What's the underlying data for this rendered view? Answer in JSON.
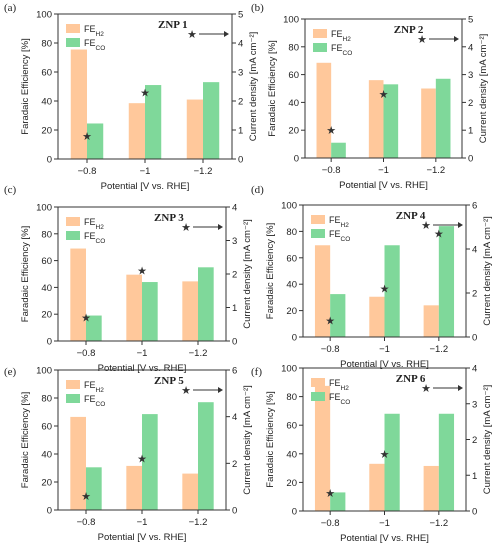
{
  "figure": {
    "xlabel_common": "Potential [V vs. RHE]",
    "colors": {
      "fe_h2": "#ffc89b",
      "fe_co": "#7fd89a",
      "frame": "#333333",
      "star": "#333333"
    },
    "legend_icon": "star-arrow-icon"
  },
  "chart_data": [
    {
      "type": "bar",
      "panel": "(a)",
      "title": "ZNP 1",
      "categories": [
        "-0.8",
        "-1",
        "-1.2"
      ],
      "series": [
        {
          "name": "FE",
          "subscript": "H2",
          "values": [
            75.5,
            38.5,
            41
          ]
        },
        {
          "name": "FE",
          "subscript": "CO",
          "values": [
            24.5,
            51,
            53
          ]
        }
      ],
      "current_density": [
        0.8,
        2.3,
        null
      ],
      "ylabel": "Faradaic Efficiency [%]",
      "ylim": [
        0,
        100
      ],
      "yticks": [
        "0",
        "20",
        "40",
        "60",
        "80",
        "100"
      ],
      "y2label": "Current density [mA cm⁻²]",
      "y2lim": [
        0,
        5
      ],
      "y2ticks": [
        "0",
        "1",
        "2",
        "3",
        "4",
        "5"
      ],
      "xlabel": "Potential [V vs. RHE]",
      "xticks": [
        "−0.8",
        "−1",
        "−1.2"
      ],
      "legend": "top-left"
    },
    {
      "type": "bar",
      "panel": "(b)",
      "title": "ZNP 2",
      "categories": [
        "-0.8",
        "-1",
        "-1.2"
      ],
      "series": [
        {
          "name": "FE",
          "subscript": "H2",
          "values": [
            68.5,
            56,
            50
          ]
        },
        {
          "name": "FE",
          "subscript": "CO",
          "values": [
            11,
            53,
            57
          ]
        }
      ],
      "current_density": [
        1.0,
        2.3,
        null
      ],
      "ylabel": "Faradaic Efficiency [%]",
      "ylim": [
        0,
        100
      ],
      "yticks": [
        "0",
        "20",
        "40",
        "60",
        "80",
        "100"
      ],
      "y2label": "Current density [mA cm⁻²]",
      "y2lim": [
        0,
        5
      ],
      "y2ticks": [
        "0",
        "1",
        "2",
        "3",
        "4",
        "5"
      ],
      "xlabel": "Potential [V vs. RHE]",
      "xticks": [
        "−0.8",
        "−1",
        "−1.2"
      ],
      "legend": "top-left"
    },
    {
      "type": "bar",
      "panel": "(c)",
      "title": "ZNP 3",
      "categories": [
        "-0.8",
        "-1",
        "-1.2"
      ],
      "series": [
        {
          "name": "FE",
          "subscript": "H2",
          "values": [
            69,
            49.5,
            44.5
          ]
        },
        {
          "name": "FE",
          "subscript": "CO",
          "values": [
            19,
            44,
            55
          ]
        }
      ],
      "current_density": [
        0.7,
        2.1,
        null
      ],
      "ylabel": "Faradaic Efficiency [%]",
      "ylim": [
        0,
        100
      ],
      "yticks": [
        "0",
        "20",
        "40",
        "60",
        "80",
        "100"
      ],
      "y2label": "Current density [mA cm⁻²]",
      "y2lim": [
        0,
        4
      ],
      "y2ticks": [
        "0",
        "1",
        "2",
        "3",
        "4"
      ],
      "xlabel": "Potential [V vs. RHE]",
      "xticks": [
        "−0.8",
        "−1",
        "−1.2"
      ],
      "legend": "top-left"
    },
    {
      "type": "bar",
      "panel": "(d)",
      "title": "ZNP 4",
      "categories": [
        "-0.8",
        "-1",
        "-1.2"
      ],
      "series": [
        {
          "name": "FE",
          "subscript": "H2",
          "values": [
            69.5,
            30.5,
            24
          ]
        },
        {
          "name": "FE",
          "subscript": "CO",
          "values": [
            32.5,
            69.5,
            84
          ]
        }
      ],
      "current_density": [
        0.75,
        2.2,
        4.7
      ],
      "ylabel": "Faradaic Efficiency [%]",
      "ylim": [
        0,
        100
      ],
      "yticks": [
        "0",
        "20",
        "40",
        "60",
        "80",
        "100"
      ],
      "y2label": "Current density [mA cm⁻²]",
      "y2lim": [
        0,
        6
      ],
      "y2ticks": [
        "0",
        "2",
        "4",
        "6"
      ],
      "xlabel": "Potential [V vs. RHE]",
      "xticks": [
        "−0.8",
        "−1",
        "−1.2"
      ],
      "legend": "top-left"
    },
    {
      "type": "bar",
      "panel": "(e)",
      "title": "ZNP 5",
      "categories": [
        "-0.8",
        "-1",
        "-1.2"
      ],
      "series": [
        {
          "name": "FE",
          "subscript": "H2",
          "values": [
            66.5,
            31.5,
            26
          ]
        },
        {
          "name": "FE",
          "subscript": "CO",
          "values": [
            30.5,
            68.5,
            77
          ]
        }
      ],
      "current_density": [
        0.6,
        2.2,
        null
      ],
      "ylabel": "Faradaic Efficiency [%]",
      "ylim": [
        0,
        100
      ],
      "yticks": [
        "0",
        "20",
        "40",
        "60",
        "80",
        "100"
      ],
      "y2label": "Current density [mA cm⁻²]",
      "y2lim": [
        0,
        6
      ],
      "y2ticks": [
        "0",
        "2",
        "4",
        "6"
      ],
      "xlabel": "Potential [V vs. RHE]",
      "xticks": [
        "−0.8",
        "−1",
        "−1.2"
      ],
      "legend": "top-left"
    },
    {
      "type": "bar",
      "panel": "(f)",
      "title": "ZNP 6",
      "categories": [
        "-0.8",
        "-1",
        "-1.2"
      ],
      "series": [
        {
          "name": "FE",
          "subscript": "H2",
          "values": [
            87.5,
            33,
            31.5
          ]
        },
        {
          "name": "FE",
          "subscript": "CO",
          "values": [
            13,
            68,
            68
          ]
        }
      ],
      "current_density": [
        0.5,
        1.6,
        null
      ],
      "ylabel": "Faradaic Efficiency [%]",
      "ylim": [
        0,
        100
      ],
      "yticks": [
        "0",
        "20",
        "40",
        "60",
        "80",
        "100"
      ],
      "y2label": "Current density [mA cm⁻²]",
      "y2lim": [
        0,
        4
      ],
      "y2ticks": [
        "0",
        "1",
        "2",
        "3",
        "4"
      ],
      "xlabel": "Potential [V vs. RHE]",
      "xticks": [
        "−0.8",
        "−1",
        "−1.2"
      ],
      "legend": "top-left"
    }
  ]
}
